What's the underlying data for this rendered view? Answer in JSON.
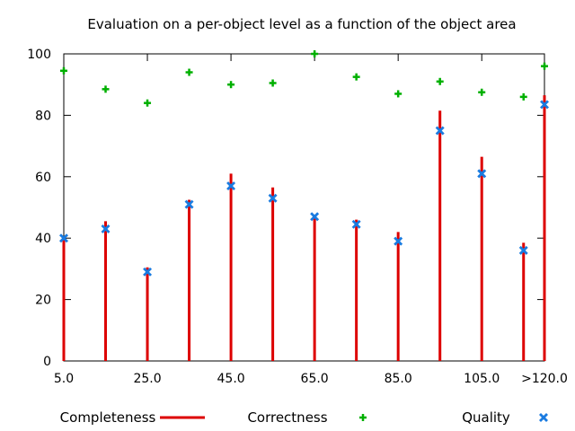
{
  "chart_data": {
    "type": "scatter",
    "title": "Evaluation on a per-object level as a function of the object area",
    "xlabel": "",
    "ylabel": "",
    "x": [
      5,
      15,
      25,
      35,
      45,
      55,
      65,
      75,
      85,
      95,
      105,
      115,
      120
    ],
    "x_tick_values": [
      5,
      25,
      45,
      65,
      85,
      105,
      120
    ],
    "x_tick_labels": [
      "5.0",
      "25.0",
      "45.0",
      "65.0",
      "85.0",
      "105.0",
      ">120.0"
    ],
    "xlim": [
      5,
      120
    ],
    "ylim": [
      0,
      100
    ],
    "y_ticks": [
      0,
      20,
      40,
      60,
      80,
      100
    ],
    "grid": false,
    "legend_position": "bottom",
    "series": [
      {
        "name": "Completeness",
        "style": "impulses",
        "color": "#dd0000",
        "values": [
          40,
          45.5,
          30.5,
          52.5,
          61,
          56.5,
          47.5,
          46,
          42,
          81.5,
          66.5,
          38.5,
          86.5
        ]
      },
      {
        "name": "Correctness",
        "style": "plus",
        "color": "#00b000",
        "values": [
          94.5,
          88.5,
          84,
          94,
          90,
          90.5,
          100,
          92.5,
          87,
          91,
          87.5,
          86,
          96
        ]
      },
      {
        "name": "Quality",
        "style": "cross",
        "color": "#1a7be0",
        "values": [
          40,
          43,
          29,
          51,
          57,
          53,
          47,
          44.5,
          39,
          75,
          61,
          36,
          83.5
        ]
      }
    ]
  }
}
